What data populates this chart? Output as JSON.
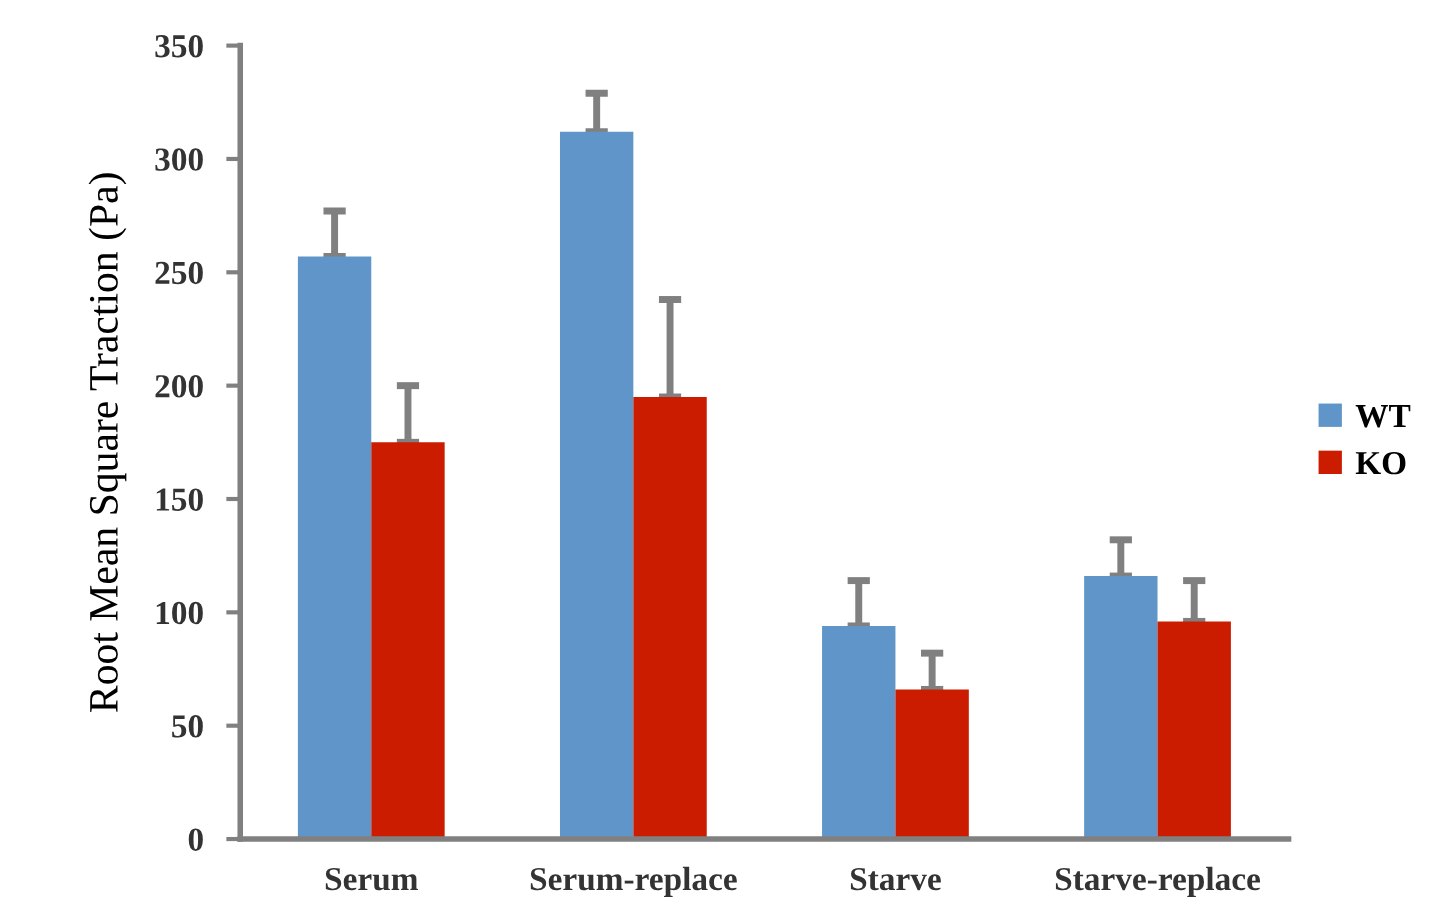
{
  "chart_data": {
    "type": "bar",
    "ylabel": "Root Mean Square Traction (Pa)",
    "categories": [
      "Serum",
      "Serum-replace",
      "Starve",
      "Starve-replace"
    ],
    "series": [
      {
        "name": "WT",
        "color": "#6095c9",
        "values": [
          257,
          312,
          94,
          116
        ],
        "errors": [
          [
            257,
            277
          ],
          [
            312,
            329
          ],
          [
            94,
            114
          ],
          [
            116,
            132
          ]
        ]
      },
      {
        "name": "KO",
        "color": "#cc1c00",
        "values": [
          175,
          195,
          66,
          96
        ],
        "errors": [
          [
            175,
            200
          ],
          [
            195,
            238
          ],
          [
            66,
            82
          ],
          [
            96,
            114
          ]
        ]
      }
    ],
    "ylim": [
      0,
      350
    ],
    "yticks": [
      0,
      50,
      100,
      150,
      200,
      250,
      300,
      350
    ],
    "grid": false,
    "legend": "right"
  }
}
